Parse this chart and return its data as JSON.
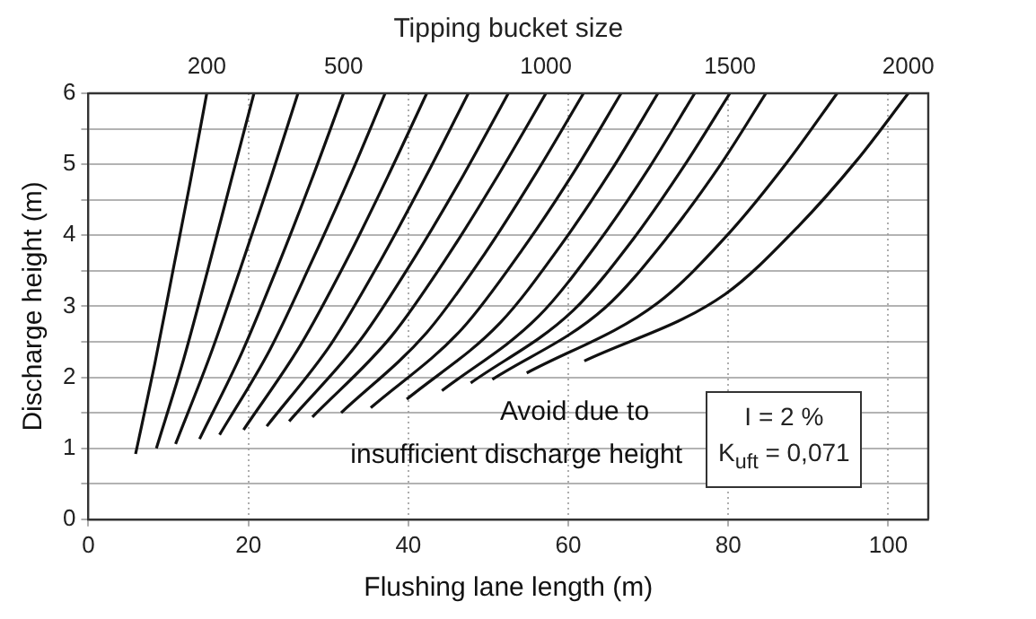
{
  "chart_data": {
    "type": "line",
    "xlabel": "Flushing lane length (m)",
    "ylabel": "Discharge height (m)",
    "x2label": "Tipping bucket size",
    "xlim": [
      0,
      105
    ],
    "xticks": [
      0,
      20,
      40,
      60,
      80,
      100
    ],
    "ylim": [
      0,
      6
    ],
    "yticks": [
      0,
      {
        "value": 0.5,
        "label": null
      },
      1,
      {
        "value": 1.5,
        "label": null
      },
      2,
      {
        "value": 2.5,
        "label": null
      },
      3,
      {
        "value": 3.5,
        "label": null
      },
      4,
      {
        "value": 4.5,
        "label": null
      },
      5,
      {
        "value": 5.5,
        "label": null
      },
      6
    ],
    "grid": true,
    "marker": "none",
    "line_style": "solid",
    "annotations": [
      "Avoid due to",
      "insufficient discharge height",
      "I = 2 %",
      "K$_{uft}$ = 0,071"
    ],
    "series": [
      {
        "name": "200",
        "color": "#111111",
        "x": [
          5.9,
          8.3,
          10.5,
          12.7,
          14.8
        ],
        "values": [
          0.92,
          2.19,
          3.46,
          4.73,
          6
        ]
      },
      {
        "color": "#111111",
        "x": [
          8.5,
          11.9,
          14.9,
          17.8,
          20.7
        ],
        "values": [
          1.0,
          2.25,
          3.5,
          4.75,
          6
        ]
      },
      {
        "color": "#111111",
        "x": [
          10.9,
          15.2,
          19.0,
          22.7,
          26.2
        ],
        "values": [
          1.06,
          2.3,
          3.53,
          4.77,
          6
        ]
      },
      {
        "name": "500",
        "color": "#111111",
        "x": [
          13.9,
          19.2,
          23.7,
          27.9,
          31.9
        ],
        "values": [
          1.13,
          2.35,
          3.57,
          4.78,
          6
        ]
      },
      {
        "color": "#111111",
        "x": [
          16.4,
          22.7,
          27.8,
          32.6,
          37.1
        ],
        "values": [
          1.19,
          2.39,
          3.6,
          4.8,
          6
        ]
      },
      {
        "color": "#111111",
        "x": [
          19.4,
          26.5,
          32.2,
          37.4,
          42.3
        ],
        "values": [
          1.26,
          2.45,
          3.63,
          4.82,
          6
        ]
      },
      {
        "color": "#111111",
        "x": [
          22.3,
          30.4,
          36.6,
          42.2,
          47.5
        ],
        "values": [
          1.31,
          2.48,
          3.66,
          4.83,
          6
        ]
      },
      {
        "color": "#111111",
        "x": [
          25.1,
          34.1,
          40.8,
          46.9,
          52.5
        ],
        "values": [
          1.38,
          2.54,
          3.69,
          4.85,
          6
        ]
      },
      {
        "name": "1000",
        "color": "#111111",
        "x": [
          28.0,
          37.9,
          45.0,
          51.3,
          57.2
        ],
        "values": [
          1.44,
          2.58,
          3.72,
          4.86,
          6
        ]
      },
      {
        "color": "#111111",
        "x": [
          31.6,
          42.3,
          49.6,
          56.0,
          61.9
        ],
        "values": [
          1.5,
          2.63,
          3.75,
          4.88,
          6
        ]
      },
      {
        "color": "#111111",
        "x": [
          35.3,
          46.7,
          54.2,
          60.7,
          66.6
        ],
        "values": [
          1.57,
          2.68,
          3.79,
          4.89,
          6
        ]
      },
      {
        "color": "#111111",
        "x": [
          39.8,
          51.5,
          59.0,
          65.4,
          71.2
        ],
        "values": [
          1.69,
          2.77,
          3.85,
          4.92,
          6
        ]
      },
      {
        "color": "#111111",
        "x": [
          44.2,
          56.3,
          63.8,
          70.1,
          75.8
        ],
        "values": [
          1.81,
          2.86,
          3.91,
          4.95,
          6
        ]
      },
      {
        "name": "1500",
        "color": "#111111",
        "x": [
          47.8,
          60.6,
          68.2,
          74.5,
          80.2
        ],
        "values": [
          1.92,
          2.94,
          3.96,
          4.98,
          6
        ]
      },
      {
        "color": "#111111",
        "x": [
          50.5,
          64.6,
          72.5,
          79.0,
          84.7
        ],
        "values": [
          1.97,
          2.98,
          3.99,
          4.99,
          6
        ]
      },
      {
        "color": "#111111",
        "x": [
          54.8,
          71.2,
          80.1,
          87.3,
          93.6
        ],
        "values": [
          2.06,
          3.05,
          4.03,
          5.02,
          6
        ]
      },
      {
        "name": "2000",
        "color": "#111111",
        "x": [
          62.0,
          79.6,
          88.7,
          96.1,
          102.5
        ],
        "values": [
          2.23,
          3.17,
          4.12,
          5.06,
          6
        ]
      }
    ]
  }
}
